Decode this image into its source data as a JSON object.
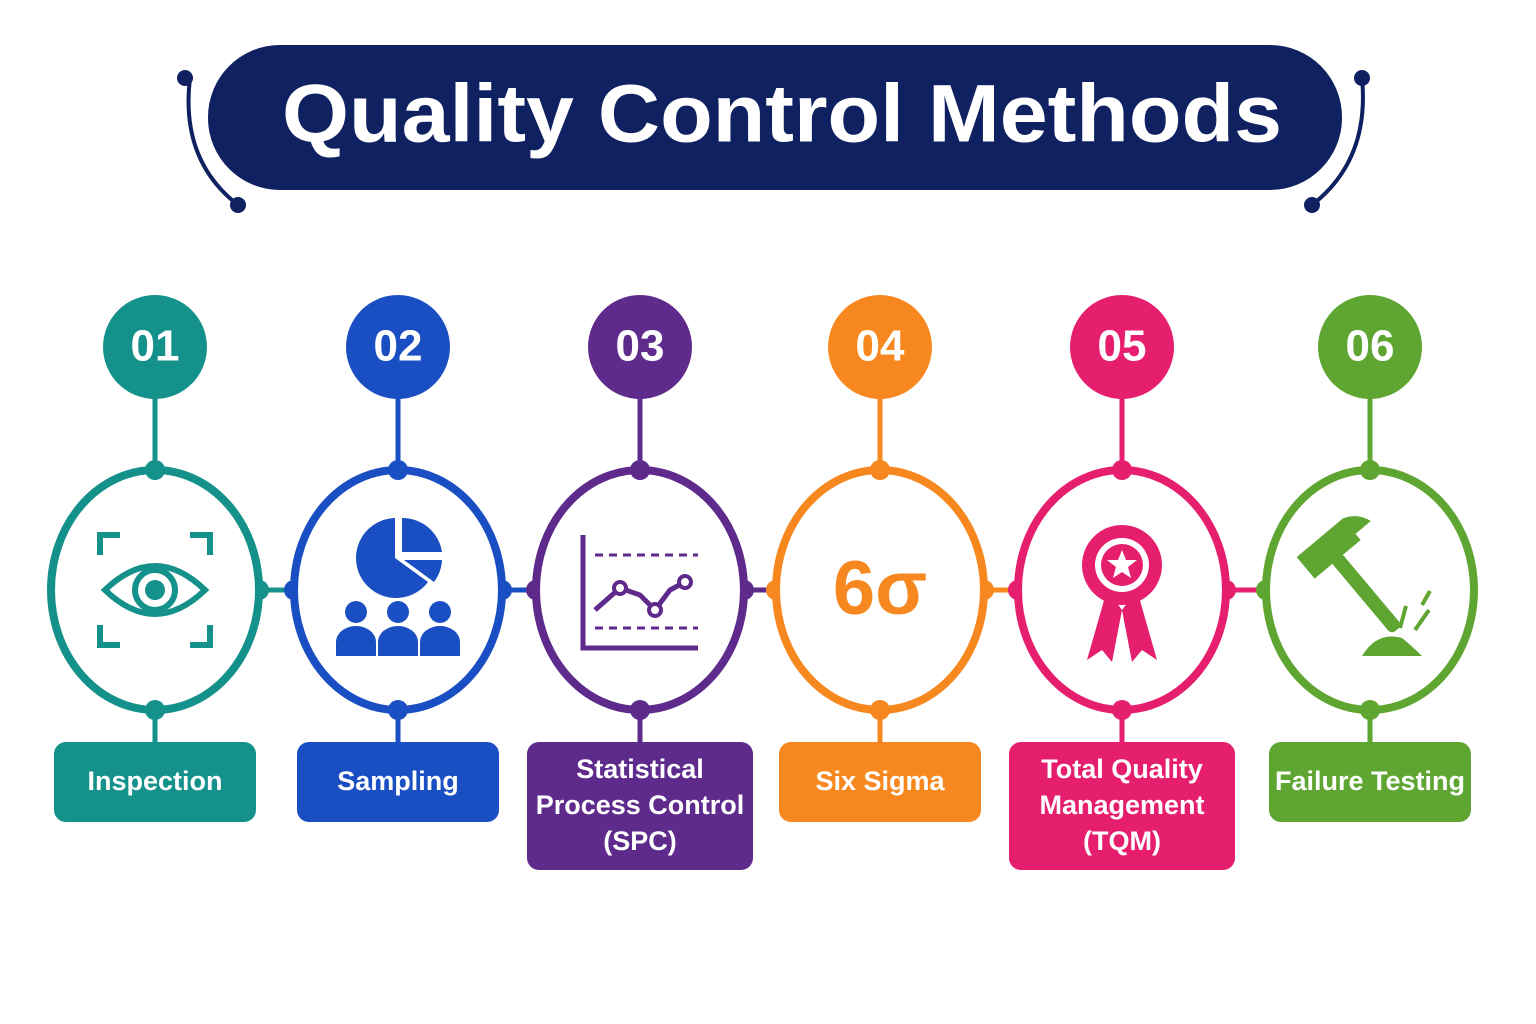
{
  "header": {
    "title": "Quality Control Methods",
    "color": "#0f2160"
  },
  "items": [
    {
      "number": "01",
      "label": [
        "Inspection"
      ],
      "color": "#14918a"
    },
    {
      "number": "02",
      "label": [
        "Sampling"
      ],
      "color": "#1a4fc4"
    },
    {
      "number": "03",
      "label": [
        "Statistical",
        "Process Control",
        "(SPC)"
      ],
      "color": "#5e2a8c"
    },
    {
      "number": "04",
      "label": [
        "Six Sigma"
      ],
      "icon_text": "6σ",
      "color": "#f7881f"
    },
    {
      "number": "05",
      "label": [
        "Total Quality",
        "Management",
        "(TQM)"
      ],
      "color": "#e61e6e"
    },
    {
      "number": "06",
      "label": [
        "Failure Testing"
      ],
      "color": "#5fa532"
    }
  ]
}
